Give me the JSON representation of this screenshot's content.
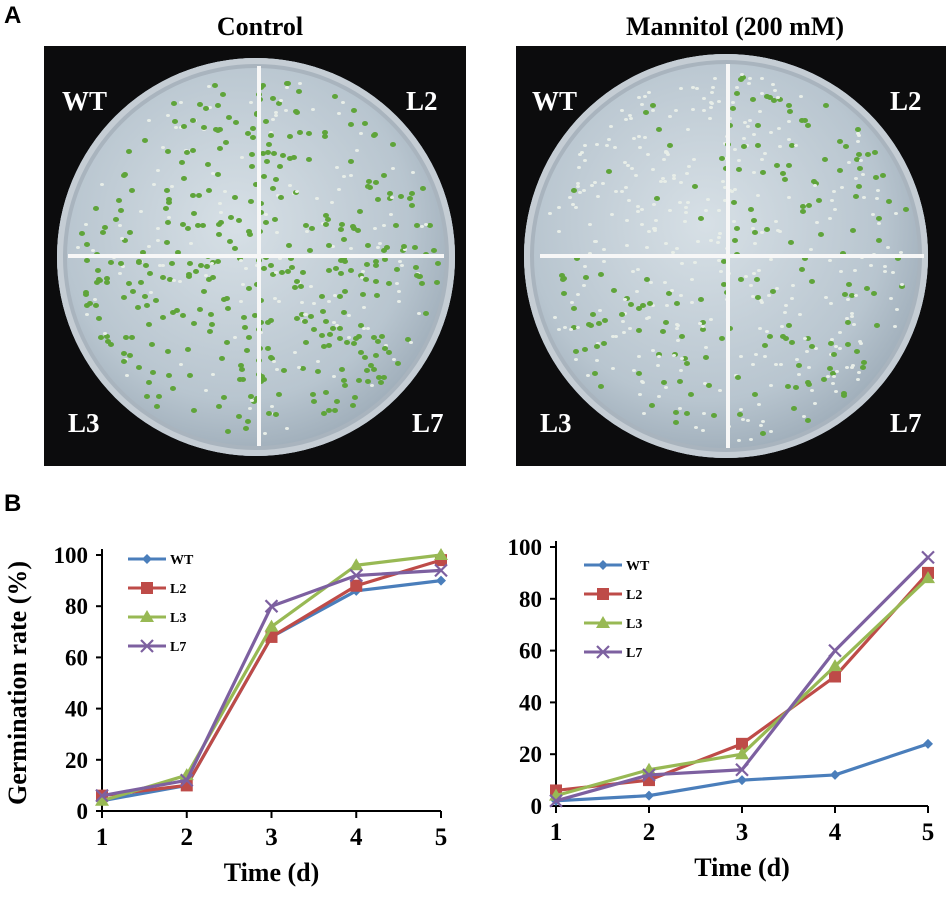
{
  "panel_a": {
    "letter": "A",
    "plates": [
      {
        "title": "Control",
        "quadrants": [
          "WT",
          "L2",
          "L3",
          "L7"
        ]
      },
      {
        "title": "Mannitol (200 mM)",
        "quadrants": [
          "WT",
          "L2",
          "L3",
          "L7"
        ]
      }
    ]
  },
  "panel_b": {
    "letter": "B"
  },
  "chart_data": [
    {
      "type": "line",
      "title": "",
      "xlabel": "Time (d)",
      "ylabel": "Germination rate (%)",
      "x": [
        1,
        2,
        3,
        4,
        5
      ],
      "xlim": [
        1,
        5
      ],
      "ylim": [
        0,
        100
      ],
      "yticks": [
        0,
        20,
        40,
        60,
        80,
        100
      ],
      "legend_position": "top-left",
      "series": [
        {
          "name": "WT",
          "color": "#4a7ebb",
          "marker": "diamond",
          "values": [
            4,
            10,
            68,
            86,
            90
          ]
        },
        {
          "name": "L2",
          "color": "#be4b48",
          "marker": "square",
          "values": [
            6,
            10,
            68,
            88,
            98
          ]
        },
        {
          "name": "L3",
          "color": "#98b954",
          "marker": "triangle",
          "values": [
            4,
            14,
            72,
            96,
            100
          ]
        },
        {
          "name": "L7",
          "color": "#7d60a0",
          "marker": "x",
          "values": [
            6,
            12,
            80,
            92,
            94
          ]
        }
      ]
    },
    {
      "type": "line",
      "title": "",
      "xlabel": "Time (d)",
      "ylabel": "",
      "x": [
        1,
        2,
        3,
        4,
        5
      ],
      "xlim": [
        1,
        5
      ],
      "ylim": [
        0,
        100
      ],
      "yticks": [
        0,
        20,
        40,
        60,
        80,
        100
      ],
      "legend_position": "top-left",
      "series": [
        {
          "name": "WT",
          "color": "#4a7ebb",
          "marker": "diamond",
          "values": [
            2,
            4,
            10,
            12,
            24
          ]
        },
        {
          "name": "L2",
          "color": "#be4b48",
          "marker": "square",
          "values": [
            6,
            10,
            24,
            50,
            90
          ]
        },
        {
          "name": "L3",
          "color": "#98b954",
          "marker": "triangle",
          "values": [
            4,
            14,
            20,
            54,
            88
          ]
        },
        {
          "name": "L7",
          "color": "#7d60a0",
          "marker": "x",
          "values": [
            2,
            12,
            14,
            60,
            96
          ]
        }
      ]
    }
  ]
}
